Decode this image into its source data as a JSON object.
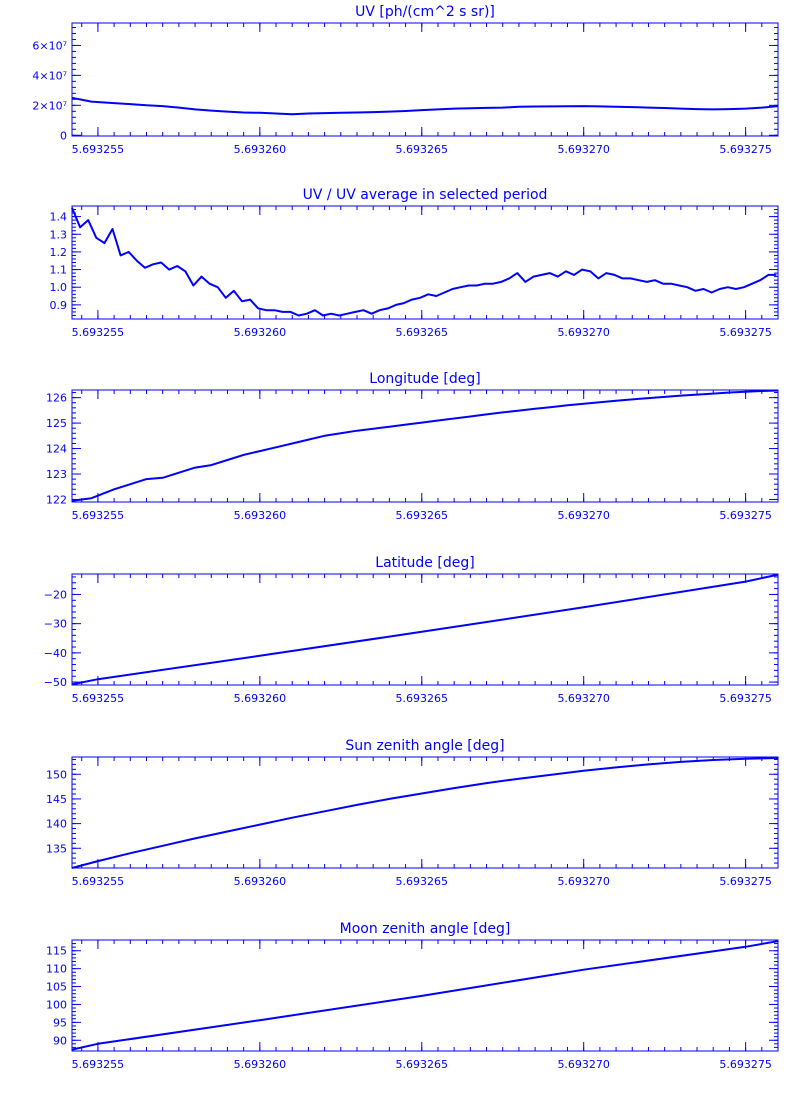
{
  "colors": {
    "ink": "#0000ff",
    "background": "#ffffff"
  },
  "chart_data": [
    {
      "type": "line",
      "title": "UV [ph/(cm^2 s sr)]",
      "xlim": [
        5.6932542,
        5.693276
      ],
      "ylim": [
        -500000,
        75000000
      ],
      "xticks": [
        5.693255,
        5.69326,
        5.693265,
        5.69327,
        5.693275
      ],
      "xtick_labels": [
        "5.693255",
        "5.693260",
        "5.693265",
        "5.693270",
        "5.693275"
      ],
      "yticks": [
        0,
        20000000,
        40000000,
        60000000
      ],
      "ytick_labels": [
        "0",
        "2×10⁷",
        "4×10⁷",
        "6×10⁷"
      ],
      "series": [
        {
          "x": [
            5.6932542,
            5.6932548,
            5.6932555,
            5.693256,
            5.6932565,
            5.693257,
            5.6932575,
            5.693258,
            5.6932585,
            5.693259,
            5.6932595,
            5.69326,
            5.6932605,
            5.693261,
            5.6932615,
            5.693262,
            5.6932625,
            5.693263,
            5.6932635,
            5.693264,
            5.6932645,
            5.693265,
            5.6932655,
            5.693266,
            5.6932665,
            5.693267,
            5.6932675,
            5.693268,
            5.6932685,
            5.693269,
            5.6932695,
            5.69327,
            5.6932705,
            5.693271,
            5.6932715,
            5.693272,
            5.6932725,
            5.693273,
            5.6932735,
            5.693274,
            5.6932745,
            5.693275,
            5.6932755,
            5.693276
          ],
          "y": [
            25000000,
            22500000,
            21500000,
            20800000,
            20000000,
            19500000,
            18500000,
            17300000,
            16500000,
            15800000,
            15200000,
            15000000,
            14500000,
            14000000,
            14500000,
            14800000,
            15000000,
            15200000,
            15500000,
            15800000,
            16200000,
            16800000,
            17300000,
            17800000,
            18000000,
            18300000,
            18500000,
            19000000,
            19200000,
            19300000,
            19400000,
            19500000,
            19300000,
            19000000,
            18800000,
            18500000,
            18200000,
            17800000,
            17500000,
            17300000,
            17500000,
            17800000,
            18500000,
            19500000
          ]
        }
      ]
    },
    {
      "type": "line",
      "title": "UV / UV average in selected period",
      "xlim": [
        5.6932542,
        5.693276
      ],
      "ylim": [
        0.82,
        1.46
      ],
      "xticks": [
        5.693255,
        5.69326,
        5.693265,
        5.69327,
        5.693275
      ],
      "xtick_labels": [
        "5.693255",
        "5.693260",
        "5.693265",
        "5.693270",
        "5.693275"
      ],
      "yticks": [
        0.9,
        1.0,
        1.1,
        1.2,
        1.3,
        1.4
      ],
      "ytick_labels": [
        "0.9",
        "1.0",
        "1.1",
        "1.2",
        "1.3",
        "1.4"
      ],
      "series": [
        {
          "x": [
            5.6932542,
            5.69325445,
            5.6932547,
            5.69325495,
            5.6932552,
            5.69325545,
            5.6932557,
            5.69325595,
            5.6932562,
            5.69325645,
            5.6932567,
            5.69325695,
            5.6932572,
            5.69325745,
            5.6932577,
            5.69325795,
            5.6932582,
            5.69325845,
            5.6932587,
            5.69325895,
            5.6932592,
            5.69325945,
            5.6932597,
            5.69325995,
            5.6932602,
            5.69326045,
            5.6932607,
            5.69326095,
            5.6932612,
            5.69326145,
            5.6932617,
            5.69326195,
            5.6932622,
            5.69326245,
            5.6932627,
            5.69326295,
            5.6932632,
            5.69326345,
            5.6932637,
            5.69326395,
            5.6932642,
            5.69326445,
            5.6932647,
            5.69326495,
            5.6932652,
            5.69326545,
            5.6932657,
            5.69326595,
            5.6932662,
            5.69326645,
            5.6932667,
            5.69326695,
            5.6932672,
            5.69326745,
            5.6932677,
            5.69326795,
            5.6932682,
            5.69326845,
            5.6932687,
            5.69326895,
            5.6932692,
            5.69326945,
            5.6932697,
            5.69326995,
            5.6932702,
            5.69327045,
            5.6932707,
            5.69327095,
            5.6932712,
            5.69327145,
            5.6932717,
            5.69327195,
            5.6932722,
            5.69327245,
            5.6932727,
            5.69327295,
            5.6932732,
            5.69327345,
            5.6932737,
            5.69327395,
            5.6932742,
            5.69327445,
            5.6932747,
            5.69327495,
            5.6932752,
            5.69327545,
            5.6932757,
            5.69327595
          ],
          "y": [
            1.45,
            1.34,
            1.38,
            1.28,
            1.25,
            1.33,
            1.18,
            1.2,
            1.15,
            1.11,
            1.13,
            1.14,
            1.1,
            1.12,
            1.09,
            1.01,
            1.06,
            1.02,
            1.0,
            0.94,
            0.98,
            0.92,
            0.93,
            0.88,
            0.87,
            0.87,
            0.86,
            0.86,
            0.84,
            0.85,
            0.87,
            0.84,
            0.85,
            0.84,
            0.85,
            0.86,
            0.87,
            0.85,
            0.87,
            0.88,
            0.9,
            0.91,
            0.93,
            0.94,
            0.96,
            0.95,
            0.97,
            0.99,
            1.0,
            1.01,
            1.01,
            1.02,
            1.02,
            1.03,
            1.05,
            1.08,
            1.03,
            1.06,
            1.07,
            1.08,
            1.06,
            1.09,
            1.07,
            1.1,
            1.09,
            1.05,
            1.08,
            1.07,
            1.05,
            1.05,
            1.04,
            1.03,
            1.04,
            1.02,
            1.02,
            1.01,
            1.0,
            0.98,
            0.99,
            0.97,
            0.99,
            1.0,
            0.99,
            1.0,
            1.02,
            1.04,
            1.07,
            1.07
          ]
        }
      ]
    },
    {
      "type": "line",
      "title": "Longitude [deg]",
      "xlim": [
        5.6932542,
        5.693276
      ],
      "ylim": [
        121.9,
        126.3
      ],
      "xticks": [
        5.693255,
        5.69326,
        5.693265,
        5.69327,
        5.693275
      ],
      "xtick_labels": [
        "5.693255",
        "5.693260",
        "5.693265",
        "5.693270",
        "5.693275"
      ],
      "yticks": [
        122,
        123,
        124,
        125,
        126
      ],
      "ytick_labels": [
        "122",
        "123",
        "124",
        "125",
        "126"
      ],
      "series": [
        {
          "x": [
            5.6932542,
            5.6932548,
            5.6932555,
            5.693256,
            5.6932565,
            5.693257,
            5.6932575,
            5.693258,
            5.6932585,
            5.693259,
            5.6932595,
            5.69326,
            5.6932605,
            5.693261,
            5.6932615,
            5.693262,
            5.6932625,
            5.693263,
            5.6932635,
            5.693264,
            5.6932645,
            5.693265,
            5.6932655,
            5.693266,
            5.6932665,
            5.693267,
            5.6932675,
            5.693268,
            5.6932685,
            5.693269,
            5.6932695,
            5.69327,
            5.6932705,
            5.693271,
            5.6932715,
            5.693272,
            5.6932725,
            5.693273,
            5.6932735,
            5.693274,
            5.6932745,
            5.693275,
            5.6932755,
            5.693276
          ],
          "y": [
            121.95,
            122.05,
            122.4,
            122.6,
            122.8,
            122.85,
            123.05,
            123.25,
            123.35,
            123.55,
            123.75,
            123.9,
            124.05,
            124.2,
            124.35,
            124.5,
            124.6,
            124.7,
            124.78,
            124.86,
            124.94,
            125.02,
            125.1,
            125.18,
            125.26,
            125.34,
            125.42,
            125.49,
            125.56,
            125.63,
            125.7,
            125.76,
            125.82,
            125.88,
            125.93,
            125.98,
            126.03,
            126.08,
            126.12,
            126.16,
            126.2,
            126.23,
            126.26,
            126.28
          ]
        }
      ]
    },
    {
      "type": "line",
      "title": "Latitude [deg]",
      "xlim": [
        5.6932542,
        5.693276
      ],
      "ylim": [
        -51,
        -13
      ],
      "xticks": [
        5.693255,
        5.69326,
        5.693265,
        5.69327,
        5.693275
      ],
      "xtick_labels": [
        "5.693255",
        "5.693260",
        "5.693265",
        "5.693270",
        "5.693275"
      ],
      "yticks": [
        -50,
        -40,
        -30,
        -20
      ],
      "ytick_labels": [
        "−50",
        "−40",
        "−30",
        "−20"
      ],
      "series": [
        {
          "x": [
            5.6932542,
            5.693255,
            5.69326,
            5.693265,
            5.69327,
            5.693275,
            5.693276
          ],
          "y": [
            -50.8,
            -49.0,
            -41.0,
            -32.8,
            -24.4,
            -15.6,
            -13.2
          ]
        }
      ]
    },
    {
      "type": "line",
      "title": "Sun zenith angle [deg]",
      "xlim": [
        5.6932542,
        5.693276
      ],
      "ylim": [
        131,
        153.5
      ],
      "xticks": [
        5.693255,
        5.69326,
        5.693265,
        5.69327,
        5.693275
      ],
      "xtick_labels": [
        "5.693255",
        "5.693260",
        "5.693265",
        "5.693270",
        "5.693275"
      ],
      "yticks": [
        135,
        140,
        145,
        150
      ],
      "ytick_labels": [
        "135",
        "140",
        "145",
        "150"
      ],
      "series": [
        {
          "x": [
            5.6932542,
            5.693255,
            5.693256,
            5.693257,
            5.693258,
            5.693259,
            5.69326,
            5.693261,
            5.693262,
            5.693263,
            5.693264,
            5.693265,
            5.693266,
            5.693267,
            5.693268,
            5.693269,
            5.69327,
            5.693271,
            5.693272,
            5.693273,
            5.693274,
            5.693275,
            5.693276
          ],
          "y": [
            131.0,
            132.4,
            134.0,
            135.5,
            137.0,
            138.4,
            139.8,
            141.2,
            142.5,
            143.8,
            145.0,
            146.1,
            147.2,
            148.2,
            149.1,
            149.9,
            150.7,
            151.4,
            152.0,
            152.5,
            152.9,
            153.15,
            153.3
          ]
        }
      ]
    },
    {
      "type": "line",
      "title": "Moon zenith angle [deg]",
      "xlim": [
        5.6932542,
        5.693276
      ],
      "ylim": [
        87,
        118
      ],
      "xticks": [
        5.693255,
        5.69326,
        5.693265,
        5.69327,
        5.693275
      ],
      "xtick_labels": [
        "5.693255",
        "5.693260",
        "5.693265",
        "5.693270",
        "5.693275"
      ],
      "yticks": [
        90,
        95,
        100,
        105,
        110,
        115
      ],
      "ytick_labels": [
        "90",
        "95",
        "100",
        "105",
        "110",
        "115"
      ],
      "series": [
        {
          "x": [
            5.6932542,
            5.693255,
            5.69326,
            5.693265,
            5.69327,
            5.693275,
            5.693276
          ],
          "y": [
            87.4,
            89.0,
            95.6,
            102.4,
            109.7,
            116.1,
            117.7
          ]
        }
      ]
    }
  ]
}
